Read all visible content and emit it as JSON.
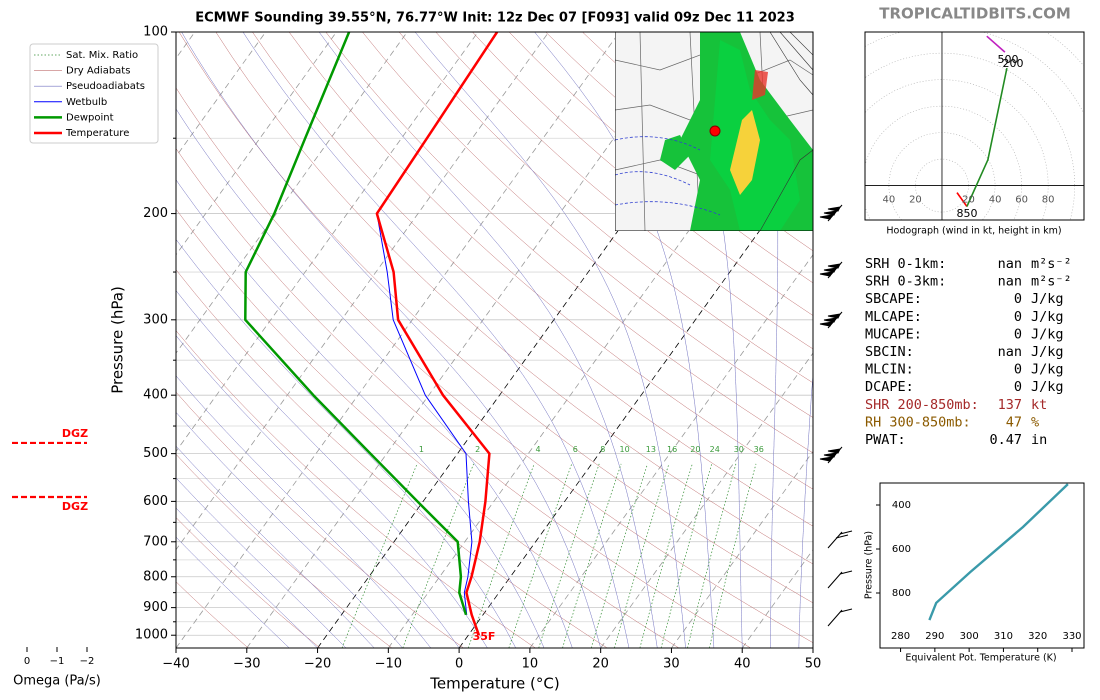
{
  "watermark": "TROPICALTIDBITS.COM",
  "chart_data": [
    {
      "type": "skewt",
      "title": "ECMWF Sounding 39.55°N, 76.77°W Init: 12z Dec 07 [F093] valid 09z Dec 11 2023",
      "xlabel": "Temperature (°C)",
      "ylabel": "Pressure (hPa)",
      "xlim": [
        -40,
        50
      ],
      "xticks": [
        {
          "value": -40,
          "label": "−40"
        },
        {
          "value": -30,
          "label": "−30"
        },
        {
          "value": -20,
          "label": "−20"
        },
        {
          "value": -10,
          "label": "−10"
        },
        0,
        10,
        20,
        30,
        40,
        50
      ],
      "ylim": [
        100,
        1050
      ],
      "log_y": true,
      "yticks": [
        100,
        200,
        300,
        400,
        500,
        600,
        700,
        800,
        900,
        1000
      ],
      "minor_yticks": [
        150,
        250,
        350,
        450,
        550,
        650,
        750,
        850,
        950
      ],
      "pressure": [
        1000,
        925,
        850,
        800,
        700,
        600,
        500,
        400,
        300,
        250,
        200,
        150,
        100
      ],
      "legend_extra": [
        {
          "name": "Sat. Mix. Ratio",
          "color": "#2e8b2e"
        },
        {
          "name": "Dry Adiabats",
          "color": "#c07070"
        },
        {
          "name": "Pseudoadiabats",
          "color": "#7070c0"
        }
      ],
      "series": [
        {
          "name": "Wetbulb",
          "color": "#0000ff",
          "values": [
            null,
            -2.3,
            -4.9,
            -6.0,
            -9.0,
            -13.6,
            -18.8,
            -30.5,
            -42.7,
            -48.4,
            -55.8,
            -56.4,
            -57.3
          ]
        },
        {
          "name": "Dewpoint",
          "color": "#009900",
          "values": [
            null,
            -2.4,
            -5.6,
            -7.0,
            -11.0,
            -20.8,
            -32.3,
            -46.3,
            -63.6,
            -68.4,
            -70.3,
            -73.6,
            -78.2
          ]
        },
        {
          "name": "Temperature",
          "color": "#ff0000",
          "values": [
            1.5,
            -1.6,
            -4.6,
            -5.5,
            -7.9,
            -11.2,
            -15.5,
            -28.0,
            -42.0,
            -47.5,
            -55.8,
            -56.4,
            -57.3
          ]
        }
      ],
      "mixing_ratios": [
        1,
        2,
        4,
        6,
        8,
        10,
        13,
        16,
        20,
        24,
        30,
        36
      ],
      "surface_label": "35F",
      "dgz": {
        "label": "DGZ",
        "pressures": [
          480,
          590
        ]
      },
      "omega": {
        "xlabel": "Omega (Pa/s)",
        "xlim": [
          0,
          -2
        ],
        "xticks": [
          0,
          {
            "value": -1,
            "label": "−1"
          },
          {
            "value": -2,
            "label": "−2"
          }
        ]
      }
    },
    {
      "type": "hodograph",
      "xlabel": "Hodograph (wind in kt, height in km)",
      "xlim": [
        -58,
        107
      ],
      "ylim": [
        -26,
        116
      ],
      "xticks": [
        {
          "value": -40,
          "label": "40"
        },
        {
          "value": -20,
          "label": "20"
        },
        20,
        40,
        60,
        80
      ],
      "series": [
        {
          "color": "#ff0000",
          "u": [
            11.3,
            18.8
          ],
          "v": [
            -5.3,
            -15.8
          ]
        },
        {
          "color": "#228b22",
          "u": [
            18.8,
            34.6,
            48.9
          ],
          "v": [
            -15.8,
            19.5,
            88.7
          ]
        },
        {
          "color": "#c020c0",
          "u": [
            47.4,
            33.8
          ],
          "v": [
            100.8,
            112.8
          ]
        }
      ],
      "labels": [
        "500",
        "200",
        "850"
      ]
    },
    {
      "type": "line",
      "xlabel": "Equivalent Pot. Temperature (K)",
      "ylabel": "Pressure (hPa)",
      "xlim": [
        274,
        333.5
      ],
      "xticks": [
        280,
        290,
        300,
        310,
        320,
        330
      ],
      "ylim": [
        1050,
        300
      ],
      "yticks": [
        400,
        600,
        800
      ],
      "color": "#3a9aaa",
      "x": [
        288.4,
        290.4,
        300.3,
        315.7,
        328.8
      ],
      "values": [
        923,
        845,
        705,
        500,
        305
      ]
    }
  ],
  "stats": [
    {
      "label": "SRH 0-1km:",
      "value": "nan",
      "unit": "m²s⁻²",
      "color": "#000000"
    },
    {
      "label": "SRH 0-3km:",
      "value": "nan",
      "unit": "m²s⁻²",
      "color": "#000000"
    },
    {
      "label": "SBCAPE:",
      "value": 0,
      "unit": "J/kg",
      "color": "#000000"
    },
    {
      "label": "MLCAPE:",
      "value": 0,
      "unit": "J/kg",
      "color": "#000000"
    },
    {
      "label": "MUCAPE:",
      "value": 0,
      "unit": "J/kg",
      "color": "#000000"
    },
    {
      "label": "SBCIN:",
      "value": "nan",
      "unit": "J/kg",
      "color": "#000000"
    },
    {
      "label": "MLCIN:",
      "value": 0,
      "unit": "J/kg",
      "color": "#000000"
    },
    {
      "label": "DCAPE:",
      "value": 0,
      "unit": "J/kg",
      "color": "#000000"
    },
    {
      "label": "SHR 200-850mb:",
      "value": 137,
      "unit": "kt",
      "color": "#a52a2a"
    },
    {
      "label": "RH 300-850mb:",
      "value": 47,
      "unit": "%",
      "color": "#8b5a00"
    },
    {
      "label": "PWAT:",
      "value": 0.47,
      "unit": "in",
      "color": "#000000"
    }
  ]
}
